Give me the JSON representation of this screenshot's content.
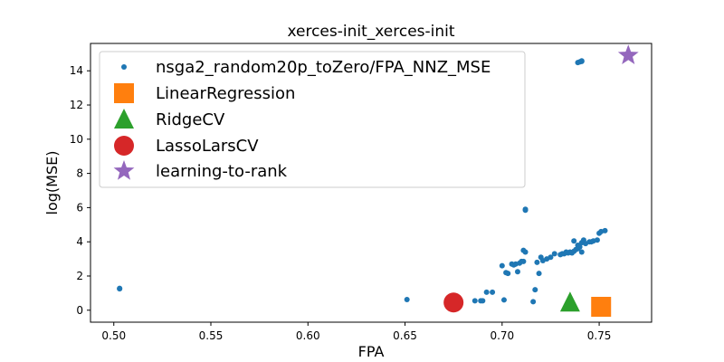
{
  "colors": {
    "series": "#1f77b4",
    "linear": "#ff7f0e",
    "ridge": "#2ca02c",
    "lasso": "#d62728",
    "ltr": "#9467bd"
  },
  "chart_data": {
    "type": "scatter",
    "title": "xerces-init_xerces-init",
    "xlabel": "FPA",
    "ylabel": "log(MSE)",
    "xlim": [
      0.488,
      0.777
    ],
    "ylim": [
      -0.7,
      15.6
    ],
    "xticks": [
      0.5,
      0.55,
      0.6,
      0.65,
      0.7,
      0.75
    ],
    "xtick_labels": [
      "0.50",
      "0.55",
      "0.60",
      "0.65",
      "0.70",
      "0.75"
    ],
    "yticks": [
      0,
      2,
      4,
      6,
      8,
      10,
      12,
      14
    ],
    "ytick_labels": [
      "0",
      "2",
      "4",
      "6",
      "8",
      "10",
      "12",
      "14"
    ],
    "grid": false,
    "legend_position": "upper-left",
    "series": [
      {
        "name": "nsga2_random20p_toZero/FPA_NNZ_MSE",
        "marker": "circle-small",
        "color_key": "series",
        "points": [
          [
            0.503,
            1.25
          ],
          [
            0.503,
            1.28
          ],
          [
            0.651,
            0.62
          ],
          [
            0.686,
            0.55
          ],
          [
            0.689,
            0.55
          ],
          [
            0.69,
            0.55
          ],
          [
            0.692,
            1.05
          ],
          [
            0.695,
            1.05
          ],
          [
            0.7,
            2.6
          ],
          [
            0.701,
            0.6
          ],
          [
            0.702,
            2.2
          ],
          [
            0.703,
            2.15
          ],
          [
            0.705,
            2.7
          ],
          [
            0.706,
            2.65
          ],
          [
            0.707,
            2.7
          ],
          [
            0.708,
            2.25
          ],
          [
            0.709,
            2.75
          ],
          [
            0.71,
            2.85
          ],
          [
            0.711,
            2.85
          ],
          [
            0.711,
            3.5
          ],
          [
            0.712,
            3.4
          ],
          [
            0.712,
            5.9
          ],
          [
            0.712,
            5.85
          ],
          [
            0.716,
            0.5
          ],
          [
            0.717,
            1.2
          ],
          [
            0.718,
            2.8
          ],
          [
            0.719,
            2.15
          ],
          [
            0.72,
            3.1
          ],
          [
            0.721,
            2.9
          ],
          [
            0.723,
            3.0
          ],
          [
            0.725,
            3.1
          ],
          [
            0.727,
            3.3
          ],
          [
            0.73,
            3.25
          ],
          [
            0.731,
            3.3
          ],
          [
            0.732,
            3.3
          ],
          [
            0.733,
            3.4
          ],
          [
            0.734,
            3.35
          ],
          [
            0.735,
            3.4
          ],
          [
            0.736,
            3.35
          ],
          [
            0.737,
            3.45
          ],
          [
            0.737,
            4.05
          ],
          [
            0.738,
            3.55
          ],
          [
            0.739,
            3.6
          ],
          [
            0.739,
            3.8
          ],
          [
            0.74,
            3.7
          ],
          [
            0.741,
            3.95
          ],
          [
            0.741,
            3.4
          ],
          [
            0.742,
            4.1
          ],
          [
            0.743,
            3.9
          ],
          [
            0.745,
            4.0
          ],
          [
            0.746,
            4.0
          ],
          [
            0.747,
            4.05
          ],
          [
            0.749,
            4.1
          ],
          [
            0.75,
            4.5
          ],
          [
            0.751,
            4.6
          ],
          [
            0.753,
            4.65
          ],
          [
            0.739,
            14.48
          ],
          [
            0.74,
            14.52
          ],
          [
            0.741,
            14.55
          ],
          [
            0.741,
            14.58
          ]
        ]
      },
      {
        "name": "LinearRegression",
        "marker": "square",
        "color_key": "linear",
        "points": [
          [
            0.751,
            0.2
          ]
        ]
      },
      {
        "name": "RidgeCV",
        "marker": "triangle",
        "color_key": "ridge",
        "points": [
          [
            0.735,
            0.45
          ]
        ]
      },
      {
        "name": "LassoLarsCV",
        "marker": "circle-large",
        "color_key": "lasso",
        "points": [
          [
            0.675,
            0.45
          ]
        ]
      },
      {
        "name": "learning-to-rank",
        "marker": "star",
        "color_key": "ltr",
        "points": [
          [
            0.765,
            14.9
          ]
        ]
      }
    ]
  }
}
